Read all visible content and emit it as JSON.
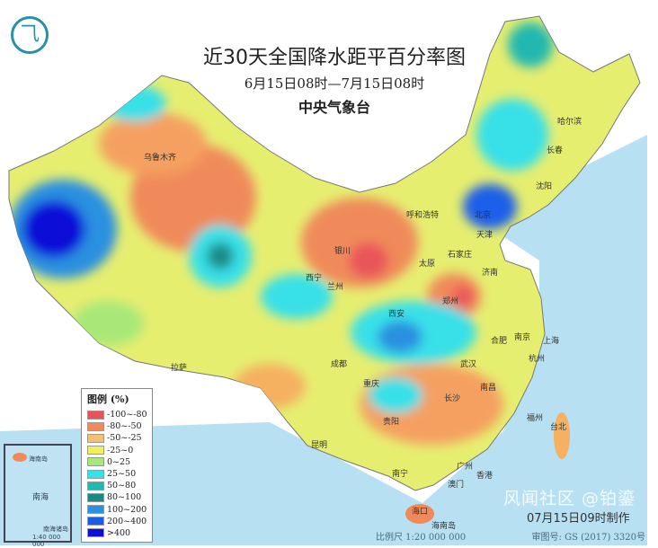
{
  "title": "近30天全国降水距平百分率图",
  "period": "6月15日08时—7月15日08时",
  "issuer": "中央气象台",
  "logo_icon": "cma-logo-icon",
  "legend": {
    "title": "图例 (%)",
    "items": [
      {
        "label": "-100~-80",
        "color": "#e8545a"
      },
      {
        "label": "-80~-50",
        "color": "#f08a5a"
      },
      {
        "label": "-50~-25",
        "color": "#f5c070"
      },
      {
        "label": "-25~0",
        "color": "#eef060"
      },
      {
        "label": "0~25",
        "color": "#a8e878"
      },
      {
        "label": "25~50",
        "color": "#38e0e8"
      },
      {
        "label": "50~80",
        "color": "#20b8b0"
      },
      {
        "label": "80~100",
        "color": "#1a8a84"
      },
      {
        "label": "100~200",
        "color": "#2a90e0"
      },
      {
        "label": "200~400",
        "color": "#1a5ee8"
      },
      {
        "label": ">400",
        "color": "#0a10d8"
      }
    ]
  },
  "cities": [
    "乌鲁木齐",
    "哈尔滨",
    "长春",
    "沈阳",
    "呼和浩特",
    "北京",
    "天津",
    "银川",
    "石家庄",
    "太原",
    "济南",
    "西宁",
    "兰州",
    "西安",
    "郑州",
    "合肥",
    "南京",
    "上海",
    "武汉",
    "杭州",
    "成都",
    "重庆",
    "拉萨",
    "长沙",
    "南昌",
    "福州",
    "台北",
    "贵阳",
    "昆明",
    "南宁",
    "广州",
    "香港",
    "澳门",
    "海口",
    "海南岛"
  ],
  "inset": {
    "sea": "南海",
    "island": "海南岛",
    "islands": "南海诸岛",
    "scale": "1:40 000 000"
  },
  "footer": {
    "made": "07月15日09时制作",
    "scale": "比例尺 1:20 000 000",
    "approval": "审图号: GS (2017) 3320号",
    "watermark": "风闻社区 @铂鎏"
  }
}
